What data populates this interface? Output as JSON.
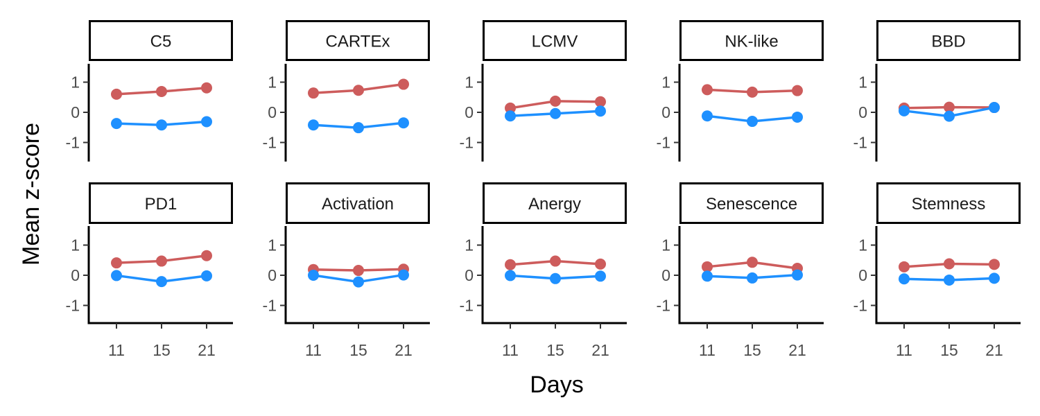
{
  "chart_data": {
    "type": "line",
    "layout": "facet-grid 2x5",
    "xlabel": "Days",
    "ylabel": "Mean z-score",
    "x": [
      11,
      15,
      21
    ],
    "x_ticks": [
      "11",
      "15",
      "21"
    ],
    "y_ticks": [
      1,
      0,
      -1
    ],
    "ylim": [
      -1.6,
      1.65
    ],
    "grid": false,
    "legend": "none",
    "series_colors": [
      "#cd5c5c",
      "#1e90ff"
    ],
    "panels": [
      {
        "title": "C5",
        "series": [
          {
            "values": [
              0.6,
              0.69,
              0.81
            ]
          },
          {
            "values": [
              -0.37,
              -0.42,
              -0.31
            ]
          }
        ]
      },
      {
        "title": "CARTEx",
        "series": [
          {
            "values": [
              0.64,
              0.73,
              0.93
            ]
          },
          {
            "values": [
              -0.42,
              -0.51,
              -0.35
            ]
          }
        ]
      },
      {
        "title": "LCMV",
        "series": [
          {
            "values": [
              0.14,
              0.37,
              0.35
            ]
          },
          {
            "values": [
              -0.12,
              -0.04,
              0.04
            ]
          }
        ]
      },
      {
        "title": "NK-like",
        "series": [
          {
            "values": [
              0.75,
              0.67,
              0.72
            ]
          },
          {
            "values": [
              -0.12,
              -0.3,
              -0.16
            ]
          }
        ]
      },
      {
        "title": "BBD",
        "series": [
          {
            "values": [
              0.14,
              0.17,
              0.16
            ]
          },
          {
            "values": [
              0.05,
              -0.13,
              0.16
            ]
          }
        ]
      },
      {
        "title": "PD1",
        "series": [
          {
            "values": [
              0.41,
              0.47,
              0.65
            ]
          },
          {
            "values": [
              -0.01,
              -0.21,
              -0.02
            ]
          }
        ]
      },
      {
        "title": "Activation",
        "series": [
          {
            "values": [
              0.19,
              0.16,
              0.2
            ]
          },
          {
            "values": [
              0.0,
              -0.22,
              0.01
            ]
          }
        ]
      },
      {
        "title": "Anergy",
        "series": [
          {
            "values": [
              0.35,
              0.47,
              0.37
            ]
          },
          {
            "values": [
              -0.01,
              -0.11,
              -0.03
            ]
          }
        ]
      },
      {
        "title": "Senescence",
        "series": [
          {
            "values": [
              0.28,
              0.43,
              0.23
            ]
          },
          {
            "values": [
              -0.03,
              -0.09,
              0.01
            ]
          }
        ]
      },
      {
        "title": "Stemness",
        "series": [
          {
            "values": [
              0.28,
              0.38,
              0.36
            ]
          },
          {
            "values": [
              -0.12,
              -0.16,
              -0.1
            ]
          }
        ]
      }
    ]
  }
}
